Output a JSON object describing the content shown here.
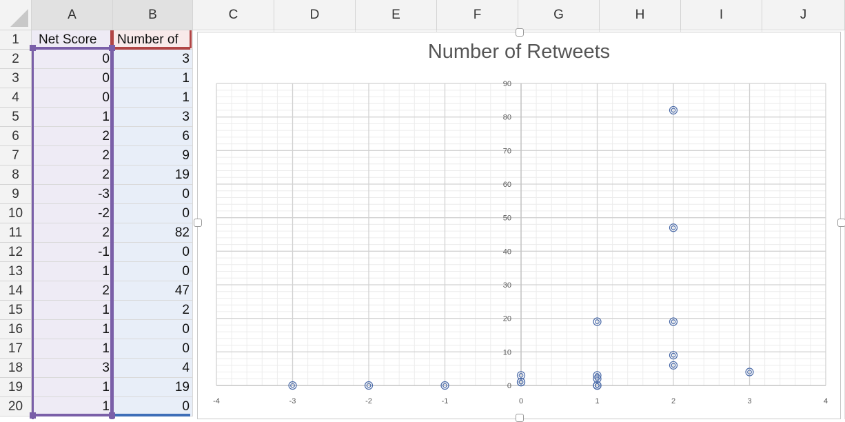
{
  "spreadsheet": {
    "columns": [
      "A",
      "B",
      "C",
      "D",
      "E",
      "F",
      "G",
      "H",
      "I",
      "J"
    ],
    "rows": [
      "1",
      "2",
      "3",
      "4",
      "5",
      "6",
      "7",
      "8",
      "9",
      "10",
      "11",
      "12",
      "13",
      "14",
      "15",
      "16",
      "17",
      "18",
      "19",
      "20"
    ],
    "header_row": {
      "a": "Net Score",
      "b": "Number of"
    },
    "data": [
      {
        "a": "0",
        "b": "3"
      },
      {
        "a": "0",
        "b": "1"
      },
      {
        "a": "0",
        "b": "1"
      },
      {
        "a": "1",
        "b": "3"
      },
      {
        "a": "2",
        "b": "6"
      },
      {
        "a": "2",
        "b": "9"
      },
      {
        "a": "2",
        "b": "19"
      },
      {
        "a": "-3",
        "b": "0"
      },
      {
        "a": "-2",
        "b": "0"
      },
      {
        "a": "2",
        "b": "82"
      },
      {
        "a": "-1",
        "b": "0"
      },
      {
        "a": "1",
        "b": "0"
      },
      {
        "a": "2",
        "b": "47"
      },
      {
        "a": "1",
        "b": "2"
      },
      {
        "a": "1",
        "b": "0"
      },
      {
        "a": "1",
        "b": "0"
      },
      {
        "a": "3",
        "b": "4"
      },
      {
        "a": "1",
        "b": "19"
      },
      {
        "a": "1",
        "b": "0"
      }
    ]
  },
  "colors": {
    "accent_purple": "#7a5fa8",
    "accent_red": "#b04545",
    "accent_blue": "#3e6eb8",
    "marker": "#4a6aa8"
  },
  "chart_data": {
    "type": "scatter",
    "title": "Number of Retweets",
    "xlabel": "",
    "ylabel": "",
    "xlim": [
      -4,
      4
    ],
    "ylim": [
      0,
      90
    ],
    "x_ticks": [
      "-4",
      "-3",
      "-2",
      "-1",
      "0",
      "1",
      "2",
      "3",
      "4"
    ],
    "y_ticks": [
      "0",
      "10",
      "20",
      "30",
      "40",
      "50",
      "60",
      "70",
      "80",
      "90"
    ],
    "grid": true,
    "marker": "double-circle",
    "points": [
      {
        "x": 0,
        "y": 3
      },
      {
        "x": 0,
        "y": 1
      },
      {
        "x": 0,
        "y": 1
      },
      {
        "x": 1,
        "y": 3
      },
      {
        "x": 2,
        "y": 6
      },
      {
        "x": 2,
        "y": 9
      },
      {
        "x": 2,
        "y": 19
      },
      {
        "x": -3,
        "y": 0
      },
      {
        "x": -2,
        "y": 0
      },
      {
        "x": 2,
        "y": 82
      },
      {
        "x": -1,
        "y": 0
      },
      {
        "x": 1,
        "y": 0
      },
      {
        "x": 2,
        "y": 47
      },
      {
        "x": 1,
        "y": 2
      },
      {
        "x": 1,
        "y": 0
      },
      {
        "x": 1,
        "y": 0
      },
      {
        "x": 3,
        "y": 4
      },
      {
        "x": 1,
        "y": 19
      },
      {
        "x": 1,
        "y": 0
      }
    ]
  }
}
